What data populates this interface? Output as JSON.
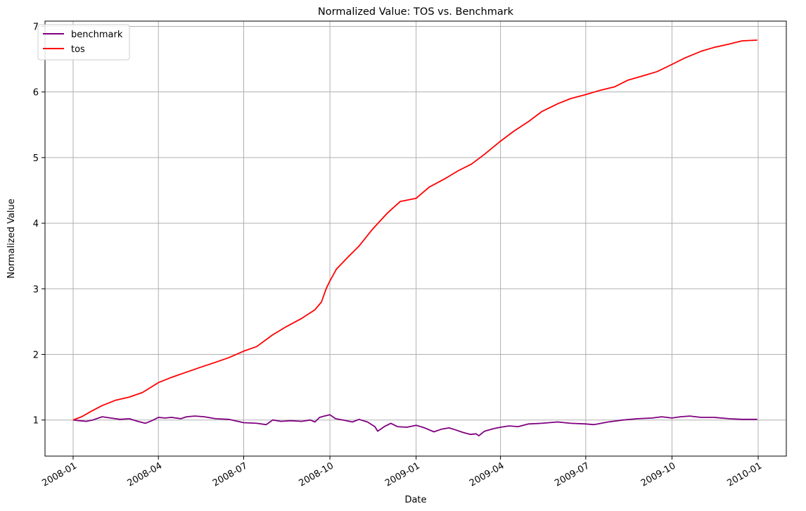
{
  "chart_data": {
    "type": "line",
    "title": "Normalized Value: TOS vs. Benchmark",
    "xlabel": "Date",
    "ylabel": "Normalized Value",
    "xlim": [
      "2007-12-02",
      "2010-01-31"
    ],
    "ylim": [
      0.45,
      7.08
    ],
    "x_ticks": [
      "2008-01",
      "2008-04",
      "2008-07",
      "2008-10",
      "2009-01",
      "2009-04",
      "2009-07",
      "2009-10",
      "2010-01"
    ],
    "y_ticks": [
      1,
      2,
      3,
      4,
      5,
      6,
      7
    ],
    "grid": true,
    "legend_position": "upper-left",
    "x_label_rotation": "30deg",
    "series": [
      {
        "name": "benchmark",
        "color": "#800080",
        "points": [
          [
            "2008-01-01",
            1.0
          ],
          [
            "2008-01-08",
            0.99
          ],
          [
            "2008-01-15",
            0.98
          ],
          [
            "2008-01-22",
            1.0
          ],
          [
            "2008-02-01",
            1.05
          ],
          [
            "2008-02-10",
            1.03
          ],
          [
            "2008-02-20",
            1.01
          ],
          [
            "2008-03-01",
            1.02
          ],
          [
            "2008-03-10",
            0.98
          ],
          [
            "2008-03-18",
            0.95
          ],
          [
            "2008-03-25",
            0.99
          ],
          [
            "2008-04-01",
            1.04
          ],
          [
            "2008-04-08",
            1.03
          ],
          [
            "2008-04-15",
            1.04
          ],
          [
            "2008-04-25",
            1.02
          ],
          [
            "2008-05-01",
            1.05
          ],
          [
            "2008-05-10",
            1.06
          ],
          [
            "2008-05-20",
            1.05
          ],
          [
            "2008-06-01",
            1.02
          ],
          [
            "2008-06-15",
            1.01
          ],
          [
            "2008-07-01",
            0.96
          ],
          [
            "2008-07-15",
            0.95
          ],
          [
            "2008-07-25",
            0.93
          ],
          [
            "2008-08-01",
            1.0
          ],
          [
            "2008-08-10",
            0.98
          ],
          [
            "2008-08-20",
            0.99
          ],
          [
            "2008-09-01",
            0.98
          ],
          [
            "2008-09-10",
            1.0
          ],
          [
            "2008-09-15",
            0.97
          ],
          [
            "2008-09-20",
            1.04
          ],
          [
            "2008-09-25",
            1.06
          ],
          [
            "2008-10-01",
            1.08
          ],
          [
            "2008-10-07",
            1.02
          ],
          [
            "2008-10-15",
            1.0
          ],
          [
            "2008-10-25",
            0.97
          ],
          [
            "2008-11-01",
            1.01
          ],
          [
            "2008-11-10",
            0.97
          ],
          [
            "2008-11-18",
            0.9
          ],
          [
            "2008-11-21",
            0.83
          ],
          [
            "2008-11-28",
            0.9
          ],
          [
            "2008-12-05",
            0.95
          ],
          [
            "2008-12-12",
            0.9
          ],
          [
            "2008-12-22",
            0.89
          ],
          [
            "2009-01-01",
            0.92
          ],
          [
            "2009-01-10",
            0.88
          ],
          [
            "2009-01-20",
            0.82
          ],
          [
            "2009-01-28",
            0.86
          ],
          [
            "2009-02-05",
            0.88
          ],
          [
            "2009-02-12",
            0.85
          ],
          [
            "2009-02-20",
            0.81
          ],
          [
            "2009-02-28",
            0.78
          ],
          [
            "2009-03-06",
            0.79
          ],
          [
            "2009-03-09",
            0.76
          ],
          [
            "2009-03-15",
            0.83
          ],
          [
            "2009-03-25",
            0.87
          ],
          [
            "2009-04-01",
            0.89
          ],
          [
            "2009-04-10",
            0.91
          ],
          [
            "2009-04-20",
            0.9
          ],
          [
            "2009-05-01",
            0.94
          ],
          [
            "2009-05-15",
            0.95
          ],
          [
            "2009-06-01",
            0.97
          ],
          [
            "2009-06-15",
            0.95
          ],
          [
            "2009-07-01",
            0.94
          ],
          [
            "2009-07-10",
            0.93
          ],
          [
            "2009-07-25",
            0.97
          ],
          [
            "2009-08-10",
            1.0
          ],
          [
            "2009-08-25",
            1.02
          ],
          [
            "2009-09-10",
            1.03
          ],
          [
            "2009-09-20",
            1.05
          ],
          [
            "2009-10-01",
            1.03
          ],
          [
            "2009-10-10",
            1.05
          ],
          [
            "2009-10-20",
            1.06
          ],
          [
            "2009-11-01",
            1.04
          ],
          [
            "2009-11-15",
            1.04
          ],
          [
            "2009-12-01",
            1.02
          ],
          [
            "2009-12-15",
            1.01
          ],
          [
            "2009-12-31",
            1.01
          ]
        ]
      },
      {
        "name": "tos",
        "color": "#ff0000",
        "points": [
          [
            "2008-01-01",
            1.0
          ],
          [
            "2008-01-10",
            1.05
          ],
          [
            "2008-01-20",
            1.13
          ],
          [
            "2008-02-01",
            1.22
          ],
          [
            "2008-02-15",
            1.3
          ],
          [
            "2008-03-01",
            1.35
          ],
          [
            "2008-03-15",
            1.42
          ],
          [
            "2008-04-01",
            1.57
          ],
          [
            "2008-04-15",
            1.65
          ],
          [
            "2008-05-01",
            1.73
          ],
          [
            "2008-05-15",
            1.8
          ],
          [
            "2008-06-01",
            1.88
          ],
          [
            "2008-06-15",
            1.95
          ],
          [
            "2008-07-01",
            2.05
          ],
          [
            "2008-07-15",
            2.12
          ],
          [
            "2008-08-01",
            2.3
          ],
          [
            "2008-08-15",
            2.42
          ],
          [
            "2008-09-01",
            2.55
          ],
          [
            "2008-09-15",
            2.68
          ],
          [
            "2008-09-22",
            2.8
          ],
          [
            "2008-09-27",
            3.0
          ],
          [
            "2008-10-01",
            3.12
          ],
          [
            "2008-10-08",
            3.3
          ],
          [
            "2008-10-20",
            3.48
          ],
          [
            "2008-11-01",
            3.65
          ],
          [
            "2008-11-15",
            3.9
          ],
          [
            "2008-12-01",
            4.15
          ],
          [
            "2008-12-15",
            4.33
          ],
          [
            "2009-01-01",
            4.38
          ],
          [
            "2009-01-15",
            4.55
          ],
          [
            "2009-02-01",
            4.68
          ],
          [
            "2009-02-15",
            4.8
          ],
          [
            "2009-03-01",
            4.9
          ],
          [
            "2009-03-15",
            5.05
          ],
          [
            "2009-04-01",
            5.25
          ],
          [
            "2009-04-15",
            5.4
          ],
          [
            "2009-05-01",
            5.55
          ],
          [
            "2009-05-15",
            5.7
          ],
          [
            "2009-06-01",
            5.82
          ],
          [
            "2009-06-15",
            5.9
          ],
          [
            "2009-07-01",
            5.96
          ],
          [
            "2009-07-15",
            6.02
          ],
          [
            "2009-08-01",
            6.08
          ],
          [
            "2009-08-15",
            6.18
          ],
          [
            "2009-09-01",
            6.25
          ],
          [
            "2009-09-15",
            6.31
          ],
          [
            "2009-10-01",
            6.42
          ],
          [
            "2009-10-15",
            6.52
          ],
          [
            "2009-11-01",
            6.62
          ],
          [
            "2009-11-15",
            6.68
          ],
          [
            "2009-12-01",
            6.73
          ],
          [
            "2009-12-15",
            6.78
          ],
          [
            "2009-12-31",
            6.79
          ]
        ]
      }
    ]
  }
}
